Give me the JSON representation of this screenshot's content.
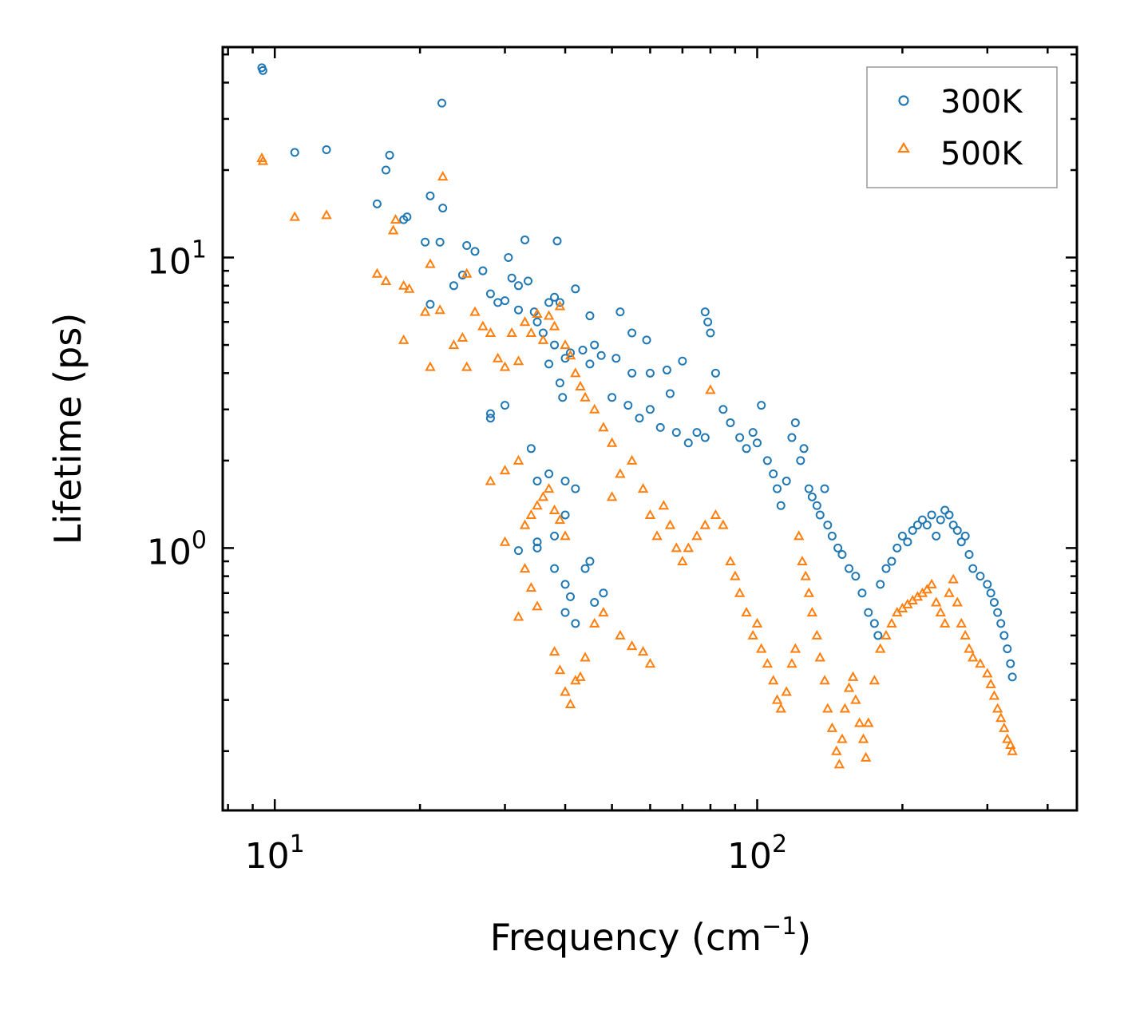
{
  "chart_data": {
    "type": "scatter",
    "xlabel": "Frequency (cm",
    "xlabel_sup": "−1",
    "xlabel_end": ")",
    "ylabel": "Lifetime (ps)",
    "xscale": "log",
    "yscale": "log",
    "xlim": [
      7.8,
      460
    ],
    "ylim": [
      0.125,
      53
    ],
    "x_major_ticks": [
      {
        "value": 10,
        "base": "10",
        "exp": "1"
      },
      {
        "value": 100,
        "base": "10",
        "exp": "2"
      }
    ],
    "y_major_ticks": [
      {
        "value": 1,
        "base": "10",
        "exp": "0"
      },
      {
        "value": 10,
        "base": "10",
        "exp": "1"
      }
    ],
    "grid": false,
    "legend_position": "top-right",
    "colors": {
      "300K": "#1f77b4",
      "500K": "#ff7f0e"
    },
    "series": [
      {
        "name": "300K",
        "marker": "circle",
        "color": "#1f77b4",
        "points": [
          [
            9.4,
            45
          ],
          [
            9.45,
            44
          ],
          [
            11,
            23
          ],
          [
            12.8,
            23.5
          ],
          [
            17.3,
            22.5
          ],
          [
            17,
            20
          ],
          [
            16.3,
            15.3
          ],
          [
            18.8,
            13.8
          ],
          [
            18.5,
            13.5
          ],
          [
            20.5,
            11.3
          ],
          [
            21,
            16.3
          ],
          [
            22,
            11.3
          ],
          [
            22.3,
            14.8
          ],
          [
            22.2,
            34
          ],
          [
            25,
            11
          ],
          [
            26,
            10.5
          ],
          [
            27,
            9
          ],
          [
            21,
            6.9
          ],
          [
            23.5,
            8
          ],
          [
            24.5,
            8.7
          ],
          [
            28,
            7.5
          ],
          [
            29,
            7
          ],
          [
            30.5,
            10
          ],
          [
            32,
            8
          ],
          [
            33,
            11.5
          ],
          [
            33.5,
            8.3
          ],
          [
            31,
            8.5
          ],
          [
            32,
            6.6
          ],
          [
            30,
            7.1
          ],
          [
            34.5,
            6.5
          ],
          [
            35,
            6
          ],
          [
            36,
            5.5
          ],
          [
            38.5,
            11.4
          ],
          [
            38,
            7.3
          ],
          [
            37,
            7
          ],
          [
            39,
            7
          ],
          [
            42,
            7.8
          ],
          [
            45,
            6.3
          ],
          [
            46,
            5
          ],
          [
            45,
            4.3
          ],
          [
            47.5,
            4.6
          ],
          [
            41,
            4.7
          ],
          [
            43.5,
            4.8
          ],
          [
            40,
            4.5
          ],
          [
            39,
            3.7
          ],
          [
            39.5,
            3.3
          ],
          [
            37,
            4.3
          ],
          [
            38,
            5
          ],
          [
            30,
            3.1
          ],
          [
            28,
            2.9
          ],
          [
            28,
            2.8
          ],
          [
            34,
            2.2
          ],
          [
            35,
            1.7
          ],
          [
            37,
            1.8
          ],
          [
            40,
            1.7
          ],
          [
            40,
            1.3
          ],
          [
            42,
            1.6
          ],
          [
            38,
            1.1
          ],
          [
            35,
            1.0
          ],
          [
            32,
            0.98
          ],
          [
            35,
            1.05
          ],
          [
            38,
            0.85
          ],
          [
            40,
            0.75
          ],
          [
            41,
            0.68
          ],
          [
            40,
            0.6
          ],
          [
            42,
            0.55
          ],
          [
            44,
            0.85
          ],
          [
            45,
            0.9
          ],
          [
            46,
            0.65
          ],
          [
            48,
            0.7
          ],
          [
            52,
            6.5
          ],
          [
            55,
            5.5
          ],
          [
            59,
            5.2
          ],
          [
            65,
            4.1
          ],
          [
            70,
            4.4
          ],
          [
            78,
            6.5
          ],
          [
            79,
            6.0
          ],
          [
            80,
            5.5
          ],
          [
            82,
            4.0
          ],
          [
            60,
            4.0
          ],
          [
            55,
            4.0
          ],
          [
            51,
            4.5
          ],
          [
            50,
            3.3
          ],
          [
            54,
            3.1
          ],
          [
            57,
            2.8
          ],
          [
            60,
            3.0
          ],
          [
            63,
            2.6
          ],
          [
            66,
            3.4
          ],
          [
            68,
            2.5
          ],
          [
            72,
            2.3
          ],
          [
            75,
            2.5
          ],
          [
            78,
            2.4
          ],
          [
            85,
            3.0
          ],
          [
            88,
            2.7
          ],
          [
            92,
            2.4
          ],
          [
            95,
            2.2
          ],
          [
            98,
            2.5
          ],
          [
            100,
            2.3
          ],
          [
            102,
            3.1
          ],
          [
            105,
            2.0
          ],
          [
            108,
            1.8
          ],
          [
            110,
            1.6
          ],
          [
            112,
            1.4
          ],
          [
            115,
            1.7
          ],
          [
            118,
            2.4
          ],
          [
            120,
            2.7
          ],
          [
            123,
            2.0
          ],
          [
            125,
            2.2
          ],
          [
            128,
            1.6
          ],
          [
            130,
            1.5
          ],
          [
            133,
            1.4
          ],
          [
            135,
            1.3
          ],
          [
            138,
            1.6
          ],
          [
            140,
            1.2
          ],
          [
            143,
            1.1
          ],
          [
            147,
            1.0
          ],
          [
            150,
            0.95
          ],
          [
            155,
            0.85
          ],
          [
            160,
            0.8
          ],
          [
            165,
            0.7
          ],
          [
            170,
            0.6
          ],
          [
            175,
            0.55
          ],
          [
            178,
            0.5
          ],
          [
            180,
            0.75
          ],
          [
            185,
            0.85
          ],
          [
            190,
            0.9
          ],
          [
            195,
            1.0
          ],
          [
            200,
            1.1
          ],
          [
            205,
            1.05
          ],
          [
            210,
            1.15
          ],
          [
            215,
            1.2
          ],
          [
            220,
            1.25
          ],
          [
            225,
            1.2
          ],
          [
            230,
            1.3
          ],
          [
            235,
            1.1
          ],
          [
            240,
            1.25
          ],
          [
            245,
            1.35
          ],
          [
            250,
            1.3
          ],
          [
            255,
            1.2
          ],
          [
            260,
            1.15
          ],
          [
            265,
            1.05
          ],
          [
            270,
            1.1
          ],
          [
            275,
            0.95
          ],
          [
            280,
            0.85
          ],
          [
            290,
            0.8
          ],
          [
            300,
            0.75
          ],
          [
            305,
            0.7
          ],
          [
            310,
            0.65
          ],
          [
            315,
            0.6
          ],
          [
            320,
            0.55
          ],
          [
            325,
            0.5
          ],
          [
            330,
            0.45
          ],
          [
            335,
            0.4
          ],
          [
            338,
            0.36
          ]
        ]
      },
      {
        "name": "500K",
        "marker": "triangle",
        "color": "#ff7f0e",
        "points": [
          [
            9.4,
            22
          ],
          [
            9.45,
            21.5
          ],
          [
            11,
            13.8
          ],
          [
            12.8,
            14
          ],
          [
            16.3,
            8.8
          ],
          [
            17,
            8.3
          ],
          [
            17.8,
            13.5
          ],
          [
            17.6,
            12.4
          ],
          [
            18.5,
            8.0
          ],
          [
            19,
            7.8
          ],
          [
            20.5,
            6.5
          ],
          [
            21,
            9.5
          ],
          [
            22,
            6.6
          ],
          [
            22.3,
            19
          ],
          [
            25,
            8.8
          ],
          [
            26,
            6.5
          ],
          [
            27,
            5.8
          ],
          [
            18.5,
            5.2
          ],
          [
            21,
            4.2
          ],
          [
            23.5,
            5.0
          ],
          [
            24.5,
            5.3
          ],
          [
            25,
            4.2
          ],
          [
            28,
            5.5
          ],
          [
            29,
            4.5
          ],
          [
            30,
            4.2
          ],
          [
            31,
            5.5
          ],
          [
            32,
            4.4
          ],
          [
            33,
            6.0
          ],
          [
            34,
            5.5
          ],
          [
            35,
            6.4
          ],
          [
            36,
            5.2
          ],
          [
            37,
            6.3
          ],
          [
            38,
            5.8
          ],
          [
            39,
            6.8
          ],
          [
            40,
            5.0
          ],
          [
            41,
            4.6
          ],
          [
            42,
            4.0
          ],
          [
            43,
            3.6
          ],
          [
            44,
            3.3
          ],
          [
            46,
            3.0
          ],
          [
            48,
            2.6
          ],
          [
            50,
            2.3
          ],
          [
            28,
            1.7
          ],
          [
            30,
            1.85
          ],
          [
            32,
            2.0
          ],
          [
            33,
            1.2
          ],
          [
            34,
            1.3
          ],
          [
            35,
            1.4
          ],
          [
            36,
            1.5
          ],
          [
            37,
            1.6
          ],
          [
            38,
            1.35
          ],
          [
            39,
            1.25
          ],
          [
            40,
            1.1
          ],
          [
            30,
            1.05
          ],
          [
            33,
            0.85
          ],
          [
            34,
            0.73
          ],
          [
            35,
            0.63
          ],
          [
            32,
            0.58
          ],
          [
            38,
            0.44
          ],
          [
            39,
            0.38
          ],
          [
            40,
            0.32
          ],
          [
            41,
            0.29
          ],
          [
            42,
            0.35
          ],
          [
            43,
            0.36
          ],
          [
            44,
            0.42
          ],
          [
            46,
            0.55
          ],
          [
            48,
            0.6
          ],
          [
            52,
            0.5
          ],
          [
            55,
            0.46
          ],
          [
            58,
            0.44
          ],
          [
            60,
            0.4
          ],
          [
            50,
            1.5
          ],
          [
            52,
            1.8
          ],
          [
            55,
            2.0
          ],
          [
            58,
            1.6
          ],
          [
            60,
            1.3
          ],
          [
            62,
            1.1
          ],
          [
            64,
            1.4
          ],
          [
            66,
            1.2
          ],
          [
            68,
            1.0
          ],
          [
            70,
            0.9
          ],
          [
            72,
            1.0
          ],
          [
            75,
            1.1
          ],
          [
            78,
            1.2
          ],
          [
            80,
            3.5
          ],
          [
            82,
            1.3
          ],
          [
            85,
            1.2
          ],
          [
            88,
            0.9
          ],
          [
            90,
            0.8
          ],
          [
            92,
            0.7
          ],
          [
            95,
            0.6
          ],
          [
            98,
            0.5
          ],
          [
            100,
            0.55
          ],
          [
            102,
            0.45
          ],
          [
            105,
            0.4
          ],
          [
            108,
            0.35
          ],
          [
            110,
            0.3
          ],
          [
            112,
            0.28
          ],
          [
            115,
            0.32
          ],
          [
            118,
            0.4
          ],
          [
            120,
            0.45
          ],
          [
            122,
            1.1
          ],
          [
            124,
            0.9
          ],
          [
            126,
            0.8
          ],
          [
            128,
            0.7
          ],
          [
            130,
            0.6
          ],
          [
            133,
            0.5
          ],
          [
            135,
            0.42
          ],
          [
            138,
            0.35
          ],
          [
            140,
            0.28
          ],
          [
            143,
            0.24
          ],
          [
            146,
            0.2
          ],
          [
            148,
            0.18
          ],
          [
            150,
            0.22
          ],
          [
            152,
            0.28
          ],
          [
            155,
            0.33
          ],
          [
            158,
            0.36
          ],
          [
            160,
            0.3
          ],
          [
            163,
            0.25
          ],
          [
            166,
            0.22
          ],
          [
            168,
            0.19
          ],
          [
            170,
            0.25
          ],
          [
            175,
            0.35
          ],
          [
            180,
            0.45
          ],
          [
            185,
            0.5
          ],
          [
            190,
            0.55
          ],
          [
            195,
            0.6
          ],
          [
            200,
            0.62
          ],
          [
            205,
            0.64
          ],
          [
            210,
            0.66
          ],
          [
            215,
            0.68
          ],
          [
            220,
            0.7
          ],
          [
            225,
            0.72
          ],
          [
            230,
            0.75
          ],
          [
            235,
            0.65
          ],
          [
            240,
            0.6
          ],
          [
            245,
            0.55
          ],
          [
            250,
            0.7
          ],
          [
            255,
            0.78
          ],
          [
            260,
            0.65
          ],
          [
            265,
            0.55
          ],
          [
            270,
            0.5
          ],
          [
            275,
            0.45
          ],
          [
            280,
            0.42
          ],
          [
            290,
            0.4
          ],
          [
            300,
            0.37
          ],
          [
            305,
            0.34
          ],
          [
            310,
            0.31
          ],
          [
            315,
            0.28
          ],
          [
            320,
            0.26
          ],
          [
            325,
            0.24
          ],
          [
            330,
            0.22
          ],
          [
            335,
            0.21
          ],
          [
            338,
            0.2
          ]
        ]
      }
    ]
  }
}
